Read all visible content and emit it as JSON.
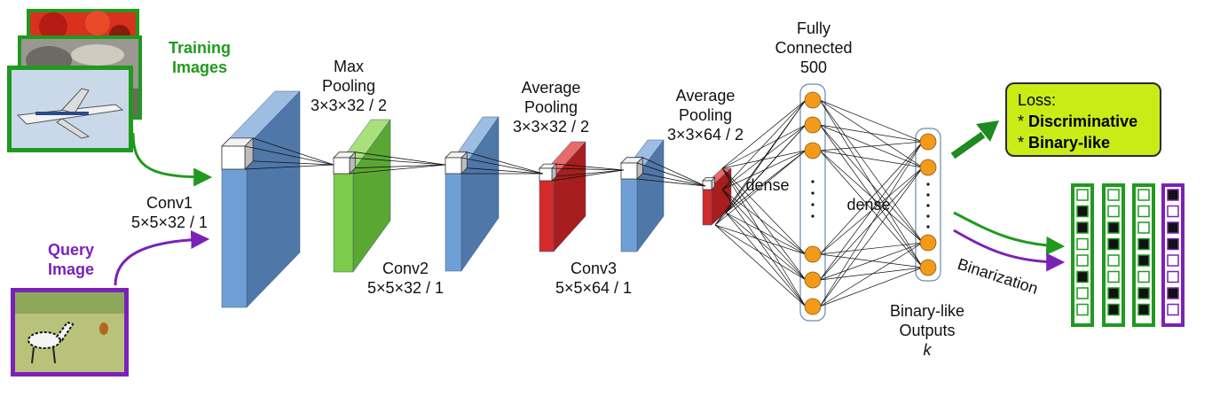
{
  "inputs": {
    "training_label": [
      "Training",
      "Images"
    ],
    "query_label": [
      "Query",
      "Image"
    ]
  },
  "layers": {
    "conv1": [
      "Conv1",
      "5×5×32 / 1"
    ],
    "maxpool": [
      "Max",
      "Pooling",
      "3×3×32 / 2"
    ],
    "conv2": [
      "Conv2",
      "5×5×32 / 1"
    ],
    "avgpool1": [
      "Average",
      "Pooling",
      "3×3×32 / 2"
    ],
    "conv3": [
      "Conv3",
      "5×5×64 / 1"
    ],
    "avgpool2": [
      "Average",
      "Pooling",
      "3×3×64 / 2"
    ],
    "fc": [
      "Fully",
      "Connected",
      "500"
    ],
    "dense1": "dense",
    "dense2": "dense",
    "outputs": [
      "Binary-like",
      "Outputs",
      "k"
    ]
  },
  "loss": {
    "title": "Loss:",
    "items": [
      "Discriminative",
      "Binary-like"
    ],
    "bullet": "*"
  },
  "binarization": {
    "label": "Binarization",
    "codes": [
      {
        "border": "green",
        "bits": [
          0,
          1,
          1,
          0,
          0,
          1,
          0,
          0
        ]
      },
      {
        "border": "green",
        "bits": [
          0,
          0,
          1,
          1,
          0,
          0,
          1,
          1
        ]
      },
      {
        "border": "green",
        "bits": [
          0,
          0,
          0,
          1,
          1,
          0,
          1,
          1
        ]
      },
      {
        "border": "purple",
        "bits": [
          1,
          0,
          1,
          1,
          0,
          0,
          1,
          0
        ]
      }
    ]
  },
  "colors": {
    "green": "#1f9a1f",
    "purple": "#7a22b8",
    "conv_front": "#6f9fd6",
    "conv_side": "#4f77a8",
    "conv_top": "#9dbde3",
    "maxpool_front": "#7acc4a",
    "maxpool_side": "#5aa832",
    "avgpool_front": "#d42a2a",
    "avgpool_side": "#a81d1d",
    "node": "#f39a1a",
    "loss_fill": "#c9ec16"
  }
}
